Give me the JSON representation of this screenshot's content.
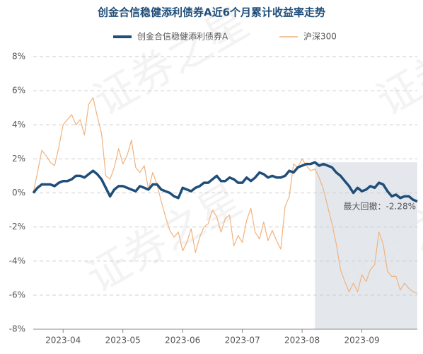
{
  "chart_data": {
    "type": "line",
    "title": "创金合信稳健添利债券A近6个月累计收益率走势",
    "watermark": "证券之星",
    "annotation": "最大回撤：-2.28%",
    "categories": [
      null,
      null,
      null,
      null,
      null,
      null,
      null,
      "2023-04",
      null,
      null,
      null,
      null,
      null,
      null,
      null,
      null,
      null,
      null,
      null,
      null,
      null,
      "2023-05",
      null,
      null,
      null,
      null,
      null,
      null,
      null,
      null,
      null,
      null,
      null,
      null,
      null,
      "2023-06",
      null,
      null,
      null,
      null,
      null,
      null,
      null,
      null,
      null,
      null,
      null,
      null,
      null,
      "2023-07",
      null,
      null,
      null,
      null,
      null,
      null,
      null,
      null,
      null,
      null,
      null,
      null,
      null,
      "2023-08",
      null,
      null,
      null,
      null,
      null,
      null,
      null,
      null,
      null,
      null,
      null,
      null,
      null,
      "2023-09",
      null,
      null,
      null,
      null,
      null,
      null,
      null,
      null,
      null,
      null,
      null,
      null,
      null
    ],
    "series": [
      {
        "name": "创金合信稳健添利债券A",
        "color": "#1f4e79",
        "width": 3.5,
        "values": [
          0,
          0.3,
          0.5,
          0.5,
          0.5,
          0.4,
          0.6,
          0.7,
          0.7,
          0.8,
          1.0,
          1.0,
          0.9,
          1.1,
          1.3,
          1.1,
          0.8,
          0.3,
          -0.2,
          0.2,
          0.4,
          0.4,
          0.3,
          0.2,
          0.1,
          0.4,
          0.3,
          0.2,
          0.5,
          0.5,
          0.2,
          0.1,
          0,
          -0.2,
          -0.3,
          0.3,
          0.2,
          0.1,
          0.3,
          0.4,
          0.6,
          0.6,
          0.8,
          1.0,
          0.7,
          0.7,
          0.9,
          0.8,
          0.6,
          0.6,
          0.9,
          0.7,
          0.9,
          1.2,
          1.1,
          0.9,
          1.0,
          0.9,
          0.9,
          1.0,
          1.3,
          1.2,
          1.5,
          1.6,
          1.7,
          1.7,
          1.8,
          1.6,
          1.7,
          1.6,
          1.5,
          1.2,
          1.0,
          0.7,
          0.4,
          0.0,
          0.3,
          0.1,
          0.2,
          0.4,
          0.3,
          0.6,
          0.5,
          0.1,
          -0.2,
          -0.1,
          -0.3,
          -0.2,
          -0.2,
          -0.4,
          -0.5
        ]
      },
      {
        "name": "沪深300",
        "color": "#f2b27c",
        "width": 1.2,
        "values": [
          0,
          1.2,
          2.5,
          2.2,
          1.8,
          1.6,
          2.7,
          4.0,
          4.3,
          4.6,
          4.0,
          4.3,
          3.4,
          5.2,
          5.6,
          4.5,
          3.5,
          1.0,
          0.8,
          1.5,
          2.6,
          1.7,
          2.2,
          3.1,
          1.5,
          1.2,
          1.6,
          0.2,
          1.2,
          0.5,
          -0.5,
          -1.4,
          -2.2,
          -2.6,
          -2.3,
          -3.4,
          -2.9,
          -2.1,
          -3.5,
          -2.6,
          -2.0,
          -1.8,
          -1.0,
          -1.4,
          -2.3,
          -1.5,
          -1.3,
          -3.1,
          -2.5,
          -2.9,
          -1.6,
          -0.9,
          -2.3,
          -2.7,
          -1.7,
          -2.8,
          -2.2,
          -2.8,
          -3.3,
          -0.8,
          -0.2,
          1.7,
          1.5,
          2.0,
          1.6,
          1.3,
          1.4,
          0.9,
          0.2,
          -0.8,
          -1.8,
          -3.0,
          -4.5,
          -5.2,
          -5.8,
          -5.3,
          -5.8,
          -4.8,
          -5.2,
          -4.5,
          -4.2,
          -2.3,
          -3.0,
          -4.6,
          -4.9,
          -4.9,
          -5.7,
          -5.3,
          -5.6,
          -5.8,
          -5.9
        ]
      }
    ],
    "ylim": [
      -8,
      8
    ],
    "yticks": [
      {
        "value": -8,
        "label": "-8%"
      },
      {
        "value": -6,
        "label": "-6%"
      },
      {
        "value": -4,
        "label": "-4%"
      },
      {
        "value": -2,
        "label": "-2%"
      },
      {
        "value": 0,
        "label": "0%"
      },
      {
        "value": 2,
        "label": "2%"
      },
      {
        "value": 4,
        "label": "4%"
      },
      {
        "value": 6,
        "label": "6%"
      },
      {
        "value": 8,
        "label": "8%"
      }
    ],
    "grid": true
  }
}
